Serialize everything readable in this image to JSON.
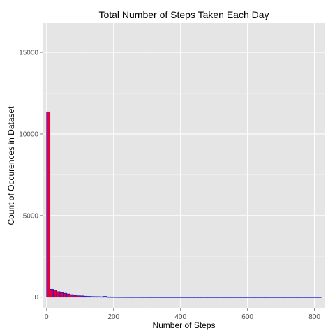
{
  "chart_data": {
    "type": "bar",
    "title": "Total Number of Steps Taken Each Day",
    "xlabel": "Number of Steps",
    "ylabel": "Count of Occurences in Dataset",
    "xlim": [
      -10,
      830
    ],
    "ylim": [
      -700,
      16800
    ],
    "x_ticks": [
      0,
      200,
      400,
      600,
      800
    ],
    "y_ticks": [
      0,
      5000,
      10000,
      15000
    ],
    "x_tick_labels": [
      "0",
      "200",
      "400",
      "600",
      "800"
    ],
    "y_tick_labels": [
      "0",
      "5000",
      "10000",
      "15000"
    ],
    "bin_width": 10,
    "bin_starts": [
      0,
      10,
      20,
      30,
      40,
      50,
      60,
      70,
      80,
      90,
      100,
      110,
      120,
      130,
      140,
      150,
      160,
      170,
      180,
      190,
      200,
      210,
      220,
      230,
      240,
      250,
      260,
      270,
      280,
      290,
      300,
      310,
      320,
      330,
      340,
      350,
      360,
      370,
      380,
      390,
      400,
      410,
      420,
      430,
      440,
      450,
      460,
      470,
      480,
      490,
      500,
      510,
      520,
      530,
      540,
      550,
      560,
      570,
      580,
      590,
      600,
      610,
      620,
      630,
      640,
      650,
      660,
      670,
      680,
      690,
      700,
      710,
      720,
      730,
      740,
      750,
      760,
      770,
      780,
      790,
      800,
      810
    ],
    "values": [
      11350,
      480,
      420,
      330,
      280,
      230,
      190,
      150,
      110,
      80,
      75,
      55,
      45,
      35,
      30,
      28,
      22,
      45,
      12,
      10,
      8,
      7,
      6,
      5,
      5,
      4,
      4,
      3,
      3,
      3,
      2,
      2,
      2,
      2,
      2,
      1,
      1,
      1,
      1,
      1,
      1,
      1,
      1,
      1,
      1,
      1,
      1,
      1,
      1,
      1,
      1,
      1,
      1,
      1,
      1,
      1,
      1,
      1,
      1,
      1,
      1,
      1,
      1,
      1,
      1,
      1,
      1,
      1,
      1,
      1,
      1,
      1,
      1,
      1,
      1,
      1,
      1,
      1,
      1,
      1,
      1,
      1
    ],
    "grid": true,
    "legend": "none",
    "colors": {
      "panel_bg": "#e5e5e5",
      "grid_major": "#ffffff",
      "grid_minor": "#f2f2f2",
      "bar_fill": "#e4003a",
      "bar_outline": "#1b1bd6"
    }
  }
}
